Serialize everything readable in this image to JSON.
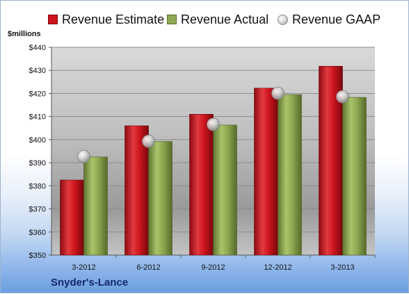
{
  "colors": {
    "estimate": "#d0121b",
    "actual": "#8faa52",
    "gaap": "#c8c8c8",
    "company": "#15286b"
  },
  "legend_items": [
    {
      "label": "Revenue Estimate",
      "color": "#d0121b",
      "marker": "square"
    },
    {
      "label": "Revenue Actual",
      "color": "#8faa52",
      "marker": "square"
    },
    {
      "label": "Revenue GAAP",
      "color": "#c8c8c8",
      "marker": "circle"
    }
  ],
  "company_name": "Snyder's-Lance",
  "chart_data": {
    "type": "bar",
    "ylabel": "$millions",
    "ylim": [
      350,
      440
    ],
    "y_ticks": [
      350,
      360,
      370,
      380,
      390,
      400,
      410,
      420,
      430,
      440
    ],
    "y_tick_labels": [
      "$350",
      "$360",
      "$370",
      "$380",
      "$390",
      "$400",
      "$410",
      "$420",
      "$430",
      "$440"
    ],
    "categories": [
      "3-2012",
      "6-2012",
      "9-2012",
      "12-2012",
      "3-2013"
    ],
    "series": [
      {
        "name": "Revenue Estimate",
        "kind": "bar",
        "values": [
          382.5,
          406,
          411,
          422.3,
          431.8
        ]
      },
      {
        "name": "Revenue Actual",
        "kind": "bar",
        "values": [
          392.5,
          399.2,
          406.3,
          419.5,
          418.3
        ]
      },
      {
        "name": "Revenue GAAP",
        "kind": "marker",
        "values": [
          392.7,
          399.3,
          406.6,
          420.1,
          418.6
        ]
      }
    ],
    "grid": true,
    "legend": "top"
  }
}
